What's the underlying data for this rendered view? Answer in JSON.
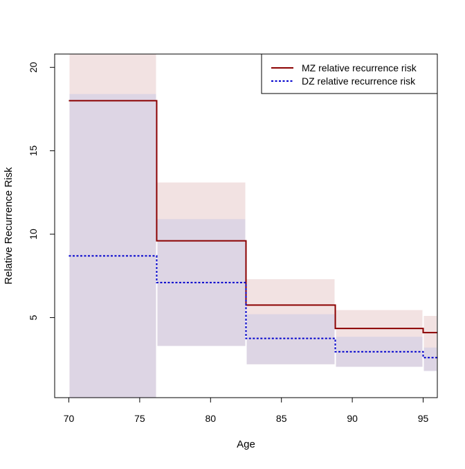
{
  "chart_data": {
    "type": "line",
    "subtype": "step",
    "title": "",
    "xlabel": "Age",
    "ylabel": "Relative Recurrence Risk",
    "xlim": [
      69,
      96
    ],
    "ylim": [
      0.2,
      20.8
    ],
    "xticks": [
      "70",
      "75",
      "80",
      "85",
      "90",
      "95"
    ],
    "yticks": [
      "5",
      "10",
      "15",
      "20"
    ],
    "grid": false,
    "legend_position": "top-right",
    "series": [
      {
        "name": "MZ relative recurrence risk",
        "color": "#8b0000",
        "line_style": "solid",
        "band_color": "#f2e2e2",
        "steps": [
          {
            "x0": 70.0,
            "x1": 76.2,
            "y": 18.0,
            "lower": 0.2,
            "upper": 20.8
          },
          {
            "x0": 76.2,
            "x1": 82.5,
            "y": 9.6,
            "lower": 3.3,
            "upper": 13.1
          },
          {
            "x0": 82.5,
            "x1": 88.8,
            "y": 5.75,
            "lower": 2.2,
            "upper": 7.3
          },
          {
            "x0": 88.8,
            "x1": 95.0,
            "y": 4.35,
            "lower": 2.05,
            "upper": 5.45
          },
          {
            "x0": 95.0,
            "x1": 96.0,
            "y": 4.1,
            "lower": 1.8,
            "upper": 5.1
          }
        ]
      },
      {
        "name": "DZ relative recurrence risk",
        "color": "#0000cd",
        "line_style": "dotted",
        "band_color": "#e4e4f4",
        "steps": [
          {
            "x0": 70.0,
            "x1": 76.2,
            "y": 8.7,
            "lower": 0.2,
            "upper": 18.4
          },
          {
            "x0": 76.2,
            "x1": 82.5,
            "y": 7.1,
            "lower": 3.3,
            "upper": 10.9
          },
          {
            "x0": 82.5,
            "x1": 88.8,
            "y": 3.75,
            "lower": 2.2,
            "upper": 5.2
          },
          {
            "x0": 88.8,
            "x1": 95.0,
            "y": 2.95,
            "lower": 2.05,
            "upper": 3.85
          },
          {
            "x0": 95.0,
            "x1": 96.0,
            "y": 2.6,
            "lower": 1.8,
            "upper": 3.2
          }
        ]
      }
    ]
  }
}
